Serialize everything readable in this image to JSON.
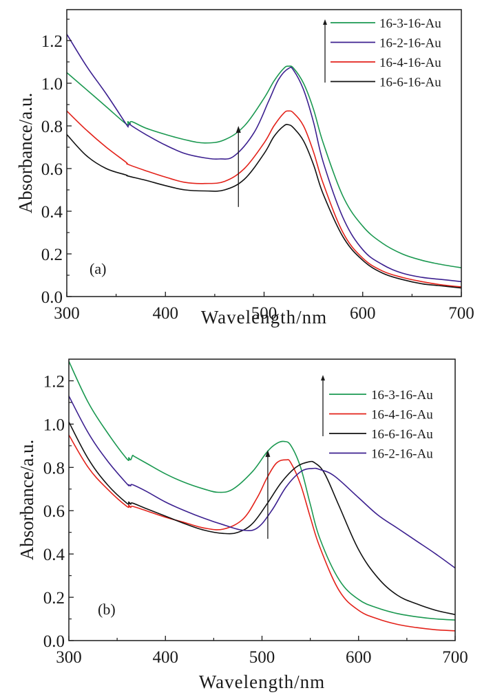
{
  "chart_data": [
    {
      "type": "line",
      "panel_label": "(a)",
      "xlabel": "Wavelength/nm",
      "ylabel": "Absorbance/a.u.",
      "xlim": [
        300,
        700
      ],
      "ylim": [
        0,
        1.345
      ],
      "xticks": [
        300,
        400,
        500,
        600,
        700
      ],
      "xtick_labels": [
        "300",
        "400",
        "500",
        "600",
        "700"
      ],
      "yticks": [
        0.0,
        0.2,
        0.4,
        0.6,
        0.8,
        1.0,
        1.2
      ],
      "ytick_labels": [
        "0.0",
        "0.2",
        "0.4",
        "0.6",
        "0.8",
        "1.0",
        "1.2"
      ],
      "grid": false,
      "legend_position": "top-right",
      "legend_arrow": true,
      "annotation_arrow": {
        "x": 474,
        "y_from": 0.42,
        "y_to": 0.8
      },
      "series": [
        {
          "name": "16-3-16-Au",
          "color": "#1a9850",
          "x": [
            300,
            320,
            340,
            360,
            362,
            364,
            366,
            380,
            400,
            420,
            440,
            460,
            480,
            500,
            510,
            520,
            525,
            530,
            540,
            550,
            560,
            580,
            600,
            620,
            640,
            660,
            680,
            700
          ],
          "y": [
            1.05,
            0.97,
            0.89,
            0.81,
            0.82,
            0.81,
            0.82,
            0.79,
            0.76,
            0.735,
            0.72,
            0.735,
            0.8,
            0.93,
            1.01,
            1.07,
            1.08,
            1.07,
            1.0,
            0.88,
            0.72,
            0.47,
            0.33,
            0.25,
            0.2,
            0.17,
            0.15,
            0.135
          ]
        },
        {
          "name": "16-2-16-Au",
          "color": "#3b1f8f",
          "x": [
            300,
            320,
            340,
            360,
            362,
            364,
            366,
            380,
            400,
            420,
            440,
            455,
            470,
            490,
            505,
            515,
            525,
            530,
            540,
            550,
            560,
            580,
            600,
            620,
            640,
            660,
            680,
            700
          ],
          "y": [
            1.23,
            1.08,
            0.95,
            0.81,
            0.8,
            0.81,
            0.8,
            0.76,
            0.71,
            0.67,
            0.65,
            0.645,
            0.66,
            0.77,
            0.92,
            1.02,
            1.07,
            1.06,
            0.97,
            0.82,
            0.63,
            0.37,
            0.22,
            0.15,
            0.11,
            0.09,
            0.08,
            0.07
          ]
        },
        {
          "name": "16-4-16-Au",
          "color": "#e32119",
          "x": [
            300,
            320,
            340,
            360,
            362,
            380,
            400,
            420,
            440,
            460,
            480,
            500,
            510,
            520,
            525,
            530,
            540,
            550,
            560,
            580,
            600,
            620,
            640,
            660,
            680,
            700
          ],
          "y": [
            0.87,
            0.78,
            0.7,
            0.63,
            0.62,
            0.59,
            0.56,
            0.535,
            0.53,
            0.54,
            0.6,
            0.72,
            0.8,
            0.86,
            0.87,
            0.86,
            0.8,
            0.68,
            0.53,
            0.3,
            0.18,
            0.12,
            0.09,
            0.07,
            0.055,
            0.045
          ]
        },
        {
          "name": "16-6-16-Au",
          "color": "#111111",
          "x": [
            300,
            320,
            340,
            360,
            362,
            380,
            400,
            420,
            440,
            460,
            480,
            500,
            510,
            520,
            525,
            530,
            540,
            550,
            560,
            580,
            600,
            620,
            640,
            660,
            680,
            700
          ],
          "y": [
            0.76,
            0.66,
            0.6,
            0.57,
            0.565,
            0.545,
            0.52,
            0.5,
            0.495,
            0.5,
            0.55,
            0.67,
            0.75,
            0.8,
            0.805,
            0.79,
            0.73,
            0.62,
            0.48,
            0.28,
            0.17,
            0.11,
            0.08,
            0.06,
            0.05,
            0.04
          ]
        }
      ]
    },
    {
      "type": "line",
      "panel_label": "(b)",
      "xlabel": "Wavelength/nm",
      "ylabel": "Absorbance/a.u.",
      "xlim": [
        300,
        700
      ],
      "ylim": [
        0,
        1.3
      ],
      "xticks": [
        300,
        400,
        500,
        600,
        700
      ],
      "xtick_labels": [
        "300",
        "400",
        "500",
        "600",
        "700"
      ],
      "yticks": [
        0.0,
        0.2,
        0.4,
        0.6,
        0.8,
        1.0,
        1.2
      ],
      "ytick_labels": [
        "0.0",
        "0.2",
        "0.4",
        "0.6",
        "0.8",
        "1.0",
        "1.2"
      ],
      "grid": false,
      "legend_position": "top-right",
      "legend_arrow": true,
      "annotation_arrow": {
        "x": 506,
        "y_from": 0.47,
        "y_to": 0.88
      },
      "series": [
        {
          "name": "16-3-16-Au",
          "color": "#1a9850",
          "x": [
            300,
            320,
            340,
            360,
            362,
            364,
            366,
            368,
            380,
            400,
            420,
            440,
            455,
            470,
            490,
            505,
            515,
            523,
            530,
            540,
            550,
            560,
            580,
            600,
            620,
            640,
            660,
            680,
            700
          ],
          "y": [
            1.29,
            1.1,
            0.96,
            0.84,
            0.845,
            0.835,
            0.855,
            0.85,
            0.82,
            0.77,
            0.73,
            0.7,
            0.685,
            0.7,
            0.78,
            0.87,
            0.91,
            0.92,
            0.9,
            0.8,
            0.63,
            0.47,
            0.28,
            0.19,
            0.15,
            0.125,
            0.11,
            0.1,
            0.095
          ]
        },
        {
          "name": "16-4-16-Au",
          "color": "#e32119",
          "x": [
            300,
            320,
            340,
            360,
            362,
            364,
            366,
            380,
            400,
            420,
            440,
            460,
            480,
            495,
            505,
            515,
            525,
            530,
            540,
            550,
            560,
            580,
            600,
            620,
            640,
            660,
            680,
            700
          ],
          "y": [
            0.95,
            0.8,
            0.7,
            0.62,
            0.625,
            0.615,
            0.62,
            0.6,
            0.57,
            0.545,
            0.52,
            0.515,
            0.56,
            0.66,
            0.75,
            0.82,
            0.835,
            0.82,
            0.72,
            0.57,
            0.43,
            0.23,
            0.14,
            0.1,
            0.075,
            0.06,
            0.05,
            0.045
          ]
        },
        {
          "name": "16-6-16-Au",
          "color": "#111111",
          "x": [
            300,
            320,
            340,
            360,
            362,
            364,
            366,
            380,
            400,
            420,
            440,
            460,
            475,
            490,
            505,
            520,
            535,
            548,
            555,
            565,
            580,
            600,
            620,
            640,
            660,
            680,
            700
          ],
          "y": [
            1.01,
            0.84,
            0.72,
            0.635,
            0.64,
            0.63,
            0.635,
            0.61,
            0.575,
            0.54,
            0.51,
            0.495,
            0.5,
            0.54,
            0.63,
            0.73,
            0.8,
            0.825,
            0.82,
            0.77,
            0.62,
            0.42,
            0.29,
            0.21,
            0.17,
            0.14,
            0.12
          ]
        },
        {
          "name": "16-2-16-Au",
          "color": "#3b1f8f",
          "x": [
            300,
            320,
            340,
            360,
            362,
            364,
            366,
            380,
            400,
            420,
            440,
            460,
            480,
            495,
            510,
            525,
            540,
            552,
            560,
            575,
            600,
            620,
            640,
            660,
            680,
            700
          ],
          "y": [
            1.13,
            0.96,
            0.83,
            0.725,
            0.72,
            0.715,
            0.72,
            0.69,
            0.64,
            0.6,
            0.565,
            0.535,
            0.51,
            0.52,
            0.6,
            0.71,
            0.78,
            0.795,
            0.79,
            0.76,
            0.66,
            0.58,
            0.52,
            0.46,
            0.4,
            0.335
          ]
        }
      ]
    }
  ]
}
